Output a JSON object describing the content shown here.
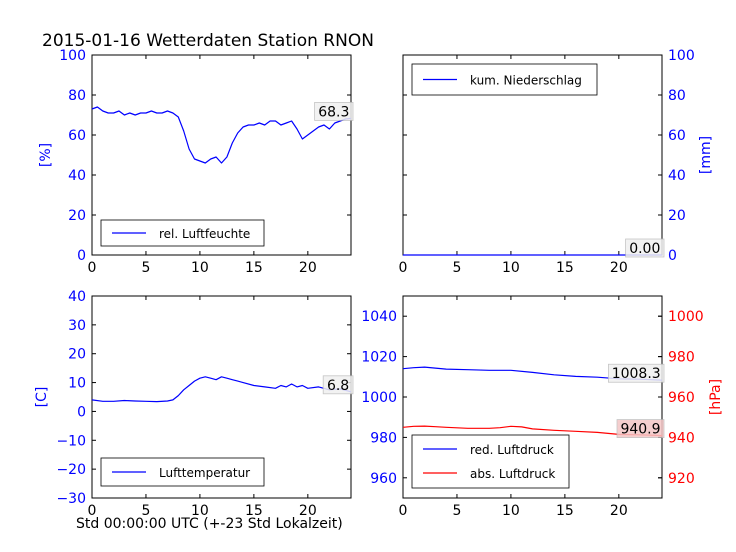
{
  "page": {
    "title": "2015-01-16 Wetterdaten Station RNON",
    "x_caption": "Std 00:00:00 UTC (+-23 Std Lokalzeit)"
  },
  "chart_data": [
    {
      "id": "humidity",
      "type": "line",
      "ylabel": "[%]",
      "ylabel_color": "#0000ff",
      "xlim": [
        0,
        24
      ],
      "ylim": [
        0,
        100
      ],
      "xticks": [
        0,
        5,
        10,
        15,
        20
      ],
      "yticks": [
        0,
        20,
        40,
        60,
        80,
        100
      ],
      "grid": false,
      "legend": "bottom-left",
      "last_value_label": "68.3",
      "series": [
        {
          "name": "rel. Luftfeuchte",
          "color": "#0000ff",
          "x": [
            0,
            0.5,
            1,
            1.5,
            2,
            2.5,
            3,
            3.5,
            4,
            4.5,
            5,
            5.5,
            6,
            6.5,
            7,
            7.5,
            8,
            8.5,
            9,
            9.5,
            10,
            10.5,
            11,
            11.5,
            12,
            12.5,
            13,
            13.5,
            14,
            14.5,
            15,
            15.5,
            16,
            16.5,
            17,
            17.5,
            18,
            18.5,
            19,
            19.5,
            20,
            20.5,
            21,
            21.5,
            22,
            22.5,
            23,
            23.5,
            24
          ],
          "values": [
            73,
            74,
            72,
            71,
            71,
            72,
            70,
            71,
            70,
            71,
            71,
            72,
            71,
            71,
            72,
            71,
            69,
            62,
            53,
            48,
            47,
            46,
            48,
            49,
            46,
            49,
            56,
            61,
            64,
            65,
            65,
            66,
            65,
            67,
            67,
            65,
            66,
            67,
            63,
            58,
            60,
            62,
            64,
            65,
            63,
            66,
            67,
            68,
            68.3
          ]
        }
      ]
    },
    {
      "id": "precipitation",
      "type": "line",
      "ylabel": "[mm]",
      "ylabel_color": "#0000ff",
      "yaxis_side": "right",
      "xlim": [
        0,
        24
      ],
      "ylim": [
        0,
        100
      ],
      "xticks": [
        0,
        5,
        10,
        15,
        20
      ],
      "yticks": [
        0,
        20,
        40,
        60,
        80,
        100
      ],
      "grid": false,
      "legend": "top-left",
      "last_value_label": "0.00",
      "series": [
        {
          "name": "kum. Niederschlag",
          "color": "#0000ff",
          "x": [
            0,
            24
          ],
          "values": [
            0,
            0
          ]
        }
      ]
    },
    {
      "id": "temperature",
      "type": "line",
      "ylabel": "[C]",
      "ylabel_color": "#0000ff",
      "xlim": [
        0,
        24
      ],
      "ylim": [
        -30,
        40
      ],
      "xticks": [
        0,
        5,
        10,
        15,
        20
      ],
      "yticks": [
        -30,
        -20,
        -10,
        0,
        10,
        20,
        30,
        40
      ],
      "grid": false,
      "legend": "bottom-left",
      "last_value_label": "6.8",
      "series": [
        {
          "name": "Lufttemperatur",
          "color": "#0000ff",
          "x": [
            0,
            1,
            2,
            3,
            4,
            5,
            6,
            7,
            7.5,
            8,
            8.5,
            9,
            9.5,
            10,
            10.5,
            11,
            11.5,
            12,
            12.5,
            13,
            13.5,
            14,
            15,
            16,
            17,
            17.5,
            18,
            18.5,
            19,
            19.5,
            20,
            21,
            22,
            23,
            24
          ],
          "values": [
            4,
            3.5,
            3.5,
            3.8,
            3.6,
            3.5,
            3.4,
            3.6,
            4,
            5.5,
            7.5,
            9,
            10.5,
            11.5,
            12,
            11.5,
            11,
            12,
            11.5,
            11,
            10.5,
            10,
            9,
            8.5,
            8,
            9,
            8.5,
            9.5,
            8.5,
            9,
            8,
            8.5,
            7.5,
            7.8,
            6.8
          ]
        }
      ]
    },
    {
      "id": "pressure",
      "type": "line",
      "ylabel": "[hPa]",
      "ylabel_color": "#ff0000",
      "xlim": [
        0,
        24
      ],
      "ylim": [
        950,
        1050
      ],
      "ylim_right": [
        910,
        1010
      ],
      "xticks": [
        0,
        5,
        10,
        15,
        20
      ],
      "yticks": [
        960,
        980,
        1000,
        1020,
        1040
      ],
      "yticks_right": [
        920,
        940,
        960,
        980,
        1000
      ],
      "grid": false,
      "legend": "bottom-left",
      "series": [
        {
          "name": "red. Luftdruck",
          "color": "#0000ff",
          "axis": "left",
          "last_value_label": "1008.3",
          "x": [
            0,
            1,
            2,
            3,
            4,
            6,
            8,
            10,
            12,
            14,
            16,
            18,
            20,
            22,
            24
          ],
          "values": [
            1014,
            1014.5,
            1014.8,
            1014.3,
            1013.8,
            1013.5,
            1013.2,
            1013.2,
            1012.2,
            1011,
            1010.2,
            1009.8,
            1009,
            1008.8,
            1008.3
          ]
        },
        {
          "name": "abs. Luftdruck",
          "color": "#ff0000",
          "axis": "right",
          "last_value_label": "940.9",
          "x": [
            0,
            1,
            2,
            3,
            4,
            6,
            8,
            9,
            10,
            11,
            12,
            14,
            16,
            18,
            20,
            22,
            24
          ],
          "values": [
            945,
            945.5,
            945.6,
            945.3,
            945,
            944.5,
            944.5,
            944.8,
            945.5,
            945.2,
            944.2,
            943.5,
            943,
            942.5,
            941.5,
            941.3,
            940.9
          ]
        }
      ]
    }
  ]
}
